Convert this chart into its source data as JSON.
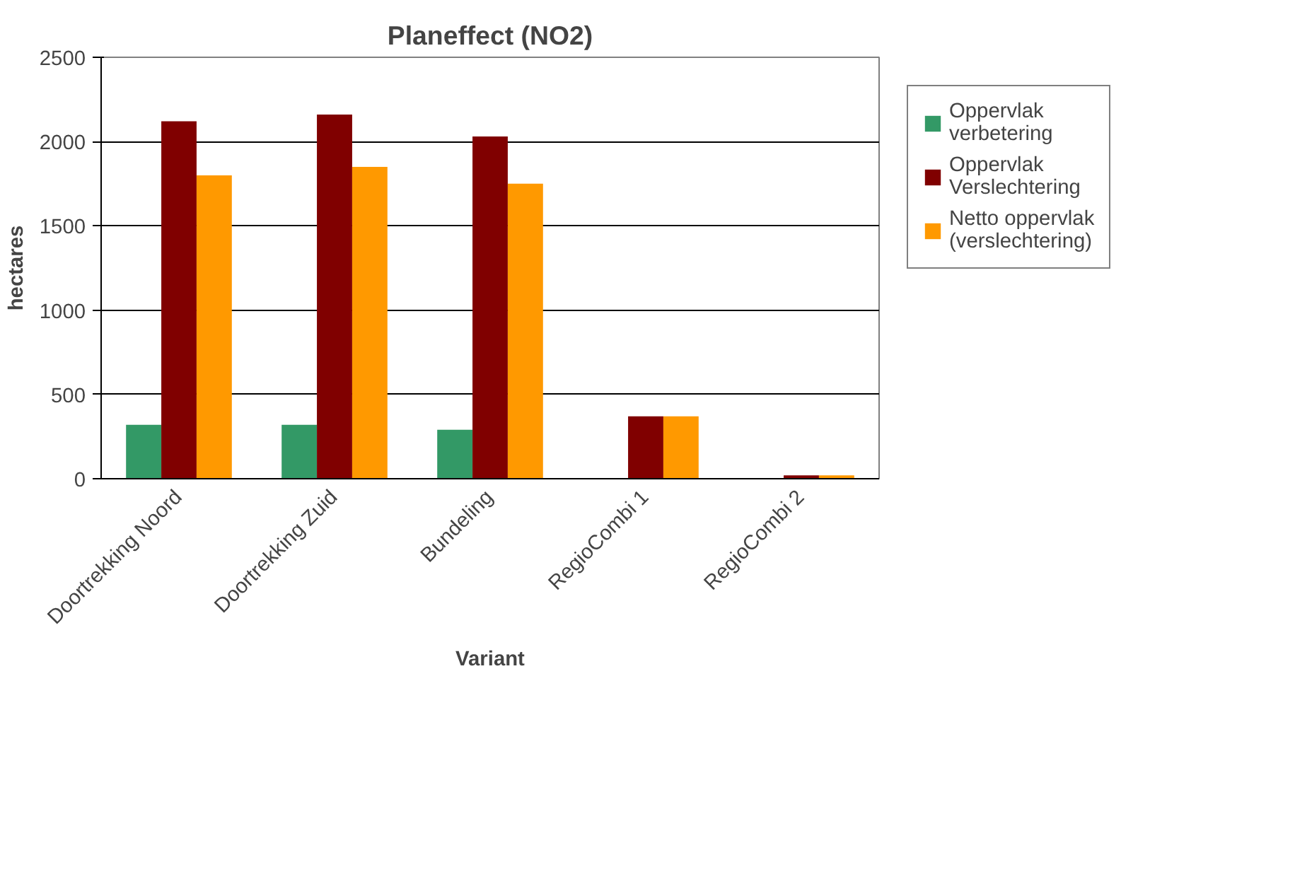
{
  "chart_data": {
    "type": "bar",
    "title": "Planeffect (NO2)",
    "xlabel": "Variant",
    "ylabel": "hectares",
    "categories": [
      "Doortrekking Noord",
      "Doortrekking Zuid",
      "Bundeling",
      "RegioCombi 1",
      "RegioCombi 2"
    ],
    "series": [
      {
        "name": "Oppervlak verbetering",
        "color": "#339966",
        "values": [
          320,
          320,
          290,
          0,
          0
        ]
      },
      {
        "name": "Oppervlak Verslechtering",
        "color": "#800000",
        "values": [
          2120,
          2160,
          2030,
          370,
          20
        ]
      },
      {
        "name": "Netto oppervlak (verslechtering)",
        "color": "#ff9900",
        "values": [
          1800,
          1850,
          1750,
          370,
          20
        ]
      }
    ],
    "ylim": [
      0,
      2500
    ],
    "yticks": [
      0,
      500,
      1000,
      1500,
      2000,
      2500
    ],
    "grid": "y",
    "legend": "right"
  }
}
